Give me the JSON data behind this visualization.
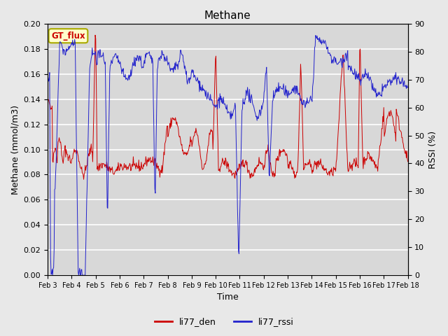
{
  "title": "Methane",
  "xlabel": "Time",
  "ylabel_left": "Methane (mmol/m3)",
  "ylabel_right": "RSSI (%)",
  "ylim_left": [
    0.0,
    0.2
  ],
  "ylim_right": [
    0,
    90
  ],
  "yticks_left": [
    0.0,
    0.02,
    0.04,
    0.06,
    0.08,
    0.1,
    0.12,
    0.14,
    0.16,
    0.18,
    0.2
  ],
  "yticks_right": [
    0,
    10,
    20,
    30,
    40,
    50,
    60,
    70,
    80,
    90
  ],
  "xtick_labels": [
    "Feb 3",
    "Feb 4",
    "Feb 5",
    "Feb 6",
    "Feb 7",
    "Feb 8",
    "Feb 9",
    "Feb 10",
    "Feb 11",
    "Feb 12",
    "Feb 13",
    "Feb 14",
    "Feb 15",
    "Feb 16",
    "Feb 17",
    "Feb 18"
  ],
  "line1_color": "#cc0000",
  "line2_color": "#2222cc",
  "line1_label": "li77_den",
  "line2_label": "li77_rssi",
  "legend_label": "GT_flux",
  "legend_label_color": "#cc0000",
  "legend_bg": "#ffffcc",
  "legend_border": "#aaaa00",
  "outer_bg": "#e8e8e8",
  "plot_bg": "#d8d8d8",
  "grid_color": "#ffffff",
  "title_fontsize": 11,
  "axis_fontsize": 9,
  "tick_fontsize": 8
}
